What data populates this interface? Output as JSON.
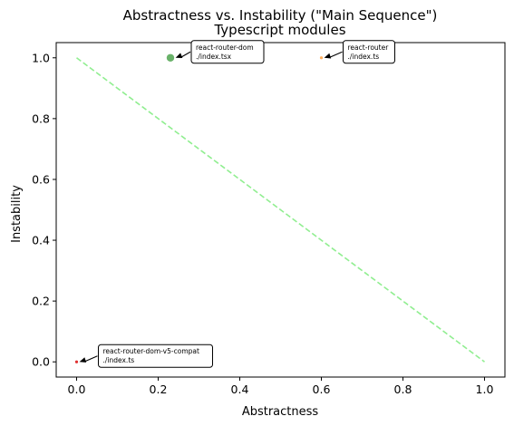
{
  "chart_data": {
    "type": "scatter",
    "title": "Abstractness vs. Instability (\"Main Sequence\")",
    "subtitle": "Typescript modules",
    "xlabel": "Abstractness",
    "ylabel": "Instability",
    "xlim": [
      -0.05,
      1.05
    ],
    "ylim": [
      -0.05,
      1.05
    ],
    "xticks": [
      0.0,
      0.2,
      0.4,
      0.6,
      0.8,
      1.0
    ],
    "xtick_labels": [
      "0.0",
      "0.2",
      "0.4",
      "0.6",
      "0.8",
      "1.0"
    ],
    "yticks": [
      0.0,
      0.2,
      0.4,
      0.6,
      0.8,
      1.0
    ],
    "ytick_labels": [
      "0.0",
      "0.2",
      "0.4",
      "0.6",
      "0.8",
      "1.0"
    ],
    "grid": false,
    "reference_line": {
      "name": "main-sequence",
      "x": [
        0.0,
        1.0
      ],
      "y": [
        1.0,
        0.0
      ],
      "style": "dashed",
      "color": "#90ee90"
    },
    "points": [
      {
        "label_line1": "react-router-dom",
        "label_line2": "./index.tsx",
        "x": 0.23,
        "y": 1.0,
        "size": "large",
        "color": "#5aaa5a"
      },
      {
        "label_line1": "react-router",
        "label_line2": "./index.ts",
        "x": 0.6,
        "y": 1.0,
        "size": "small",
        "color": "#ffb060"
      },
      {
        "label_line1": "react-router-dom-v5-compat",
        "label_line2": "./index.ts",
        "x": 0.0,
        "y": 0.0,
        "size": "small",
        "color": "#e03030"
      }
    ]
  }
}
